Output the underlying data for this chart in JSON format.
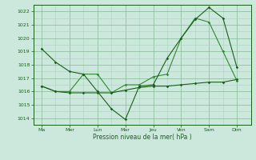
{
  "bg_color": "#cce8dc",
  "grid_color_major": "#88b898",
  "grid_color_minor": "#aad4bc",
  "line_color_dark": "#1a5e1a",
  "line_color_mid": "#2e8b2e",
  "xlabel": "Pression niveau de la mer( hPa )",
  "ylim": [
    1013.5,
    1022.5
  ],
  "yticks": [
    1014,
    1015,
    1016,
    1017,
    1018,
    1019,
    1020,
    1021,
    1022
  ],
  "x_labels": [
    "Ma",
    "Mer",
    "Lun",
    "Mar",
    "Jeu",
    "Ven",
    "Sam",
    "Dim"
  ],
  "x_positions": [
    0,
    1,
    2,
    3,
    4,
    5,
    6,
    7
  ],
  "xlim": [
    -0.3,
    7.5
  ],
  "series1_x": [
    0,
    0.5,
    1.0,
    1.5,
    2.0,
    2.5,
    3.0,
    3.5,
    4.0,
    4.5,
    5.0,
    5.5,
    6.0,
    6.5,
    7.0
  ],
  "series1_y": [
    1019.2,
    1018.2,
    1017.5,
    1017.3,
    1016.0,
    1014.7,
    1013.9,
    1016.4,
    1016.5,
    1018.5,
    1020.0,
    1021.4,
    1022.3,
    1021.5,
    1017.8
  ],
  "series2_x": [
    0,
    0.5,
    1.0,
    1.5,
    2.0,
    2.5,
    3.0,
    3.5,
    4.0,
    4.5,
    5.0,
    5.5,
    6.0,
    6.5,
    7.0
  ],
  "series2_y": [
    1016.4,
    1016.0,
    1015.9,
    1015.9,
    1015.9,
    1015.9,
    1016.1,
    1016.3,
    1016.4,
    1016.4,
    1016.5,
    1016.6,
    1016.7,
    1016.7,
    1016.9
  ],
  "series3_x": [
    0,
    0.5,
    1.0,
    1.5,
    2.0,
    2.5,
    3.0,
    3.5,
    4.0,
    4.5,
    5.0,
    5.5,
    6.0,
    6.5,
    7.0
  ],
  "series3_y": [
    1016.4,
    1016.0,
    1016.0,
    1017.3,
    1017.3,
    1015.9,
    1016.5,
    1016.5,
    1017.1,
    1017.3,
    1020.0,
    1021.5,
    1021.2,
    1019.0,
    1016.8
  ]
}
